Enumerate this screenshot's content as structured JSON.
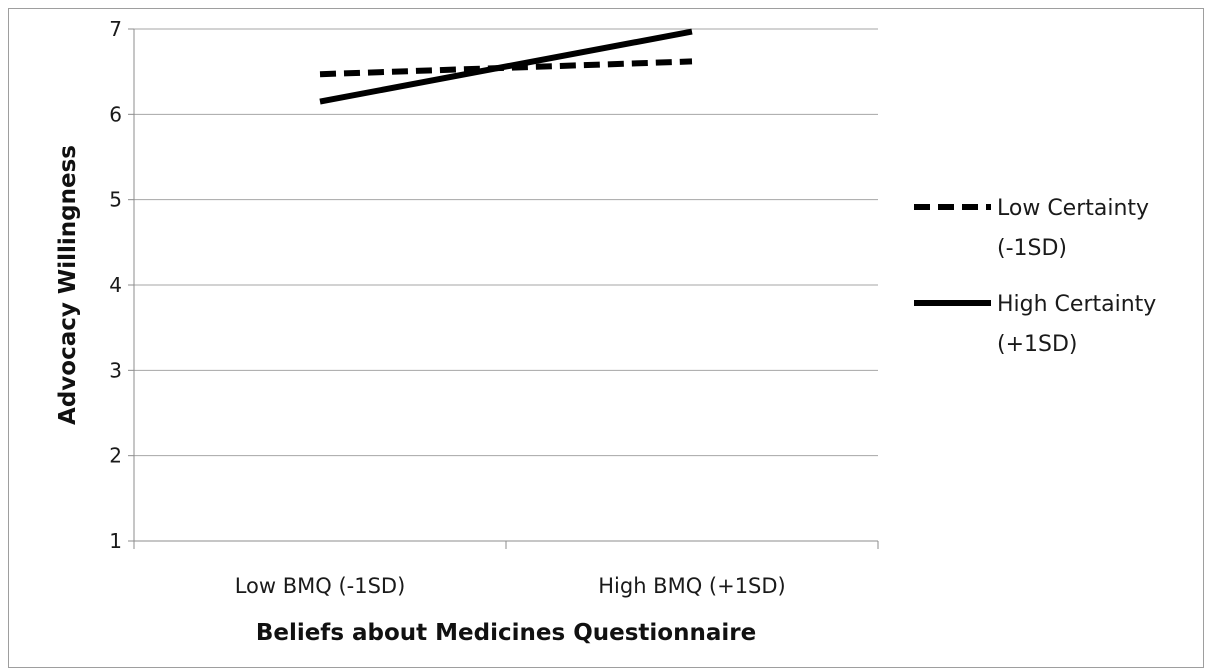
{
  "chart_data": {
    "type": "line",
    "title": "",
    "xlabel": "Beliefs about Medicines Questionnaire",
    "ylabel": "Advocacy Willingness",
    "categories": [
      "Low BMQ (-1SD)",
      "High BMQ (+1SD)"
    ],
    "ylim": [
      1,
      7
    ],
    "yticks": [
      1,
      2,
      3,
      4,
      5,
      6,
      7
    ],
    "grid": true,
    "legend_position": "right",
    "series": [
      {
        "name": "Low Certainty (-1SD)",
        "legend_lines": [
          "Low Certainty",
          "(-1SD)"
        ],
        "values": [
          6.47,
          6.62
        ],
        "style": "dashed",
        "color": "#000000"
      },
      {
        "name": "High Certainty (+1SD)",
        "legend_lines": [
          "High Certainty",
          "(+1SD)"
        ],
        "values": [
          6.15,
          6.97
        ],
        "style": "solid",
        "color": "#000000"
      }
    ]
  }
}
